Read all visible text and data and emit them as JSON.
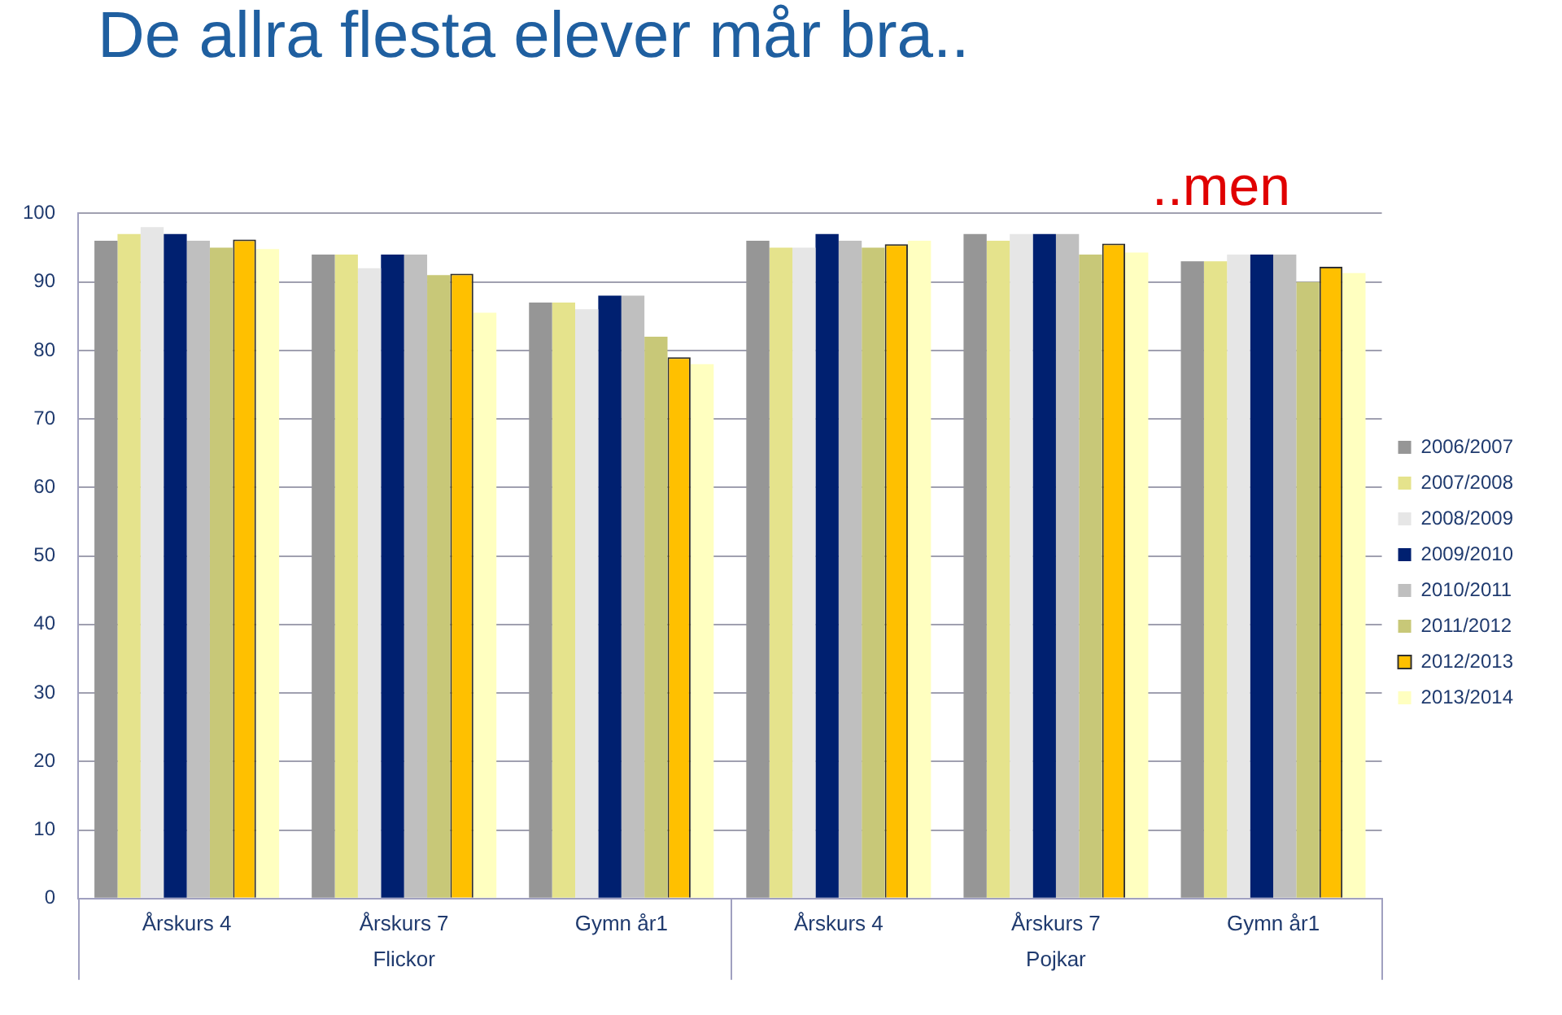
{
  "chart_data": {
    "type": "bar",
    "title": "De allra flesta elever mår bra..",
    "categories": [
      "Årskurs 4",
      "Årskurs 7",
      "Gymn år1",
      "Årskurs 4",
      "Årskurs 7",
      "Gymn år1"
    ],
    "series": [
      {
        "name": "2006/2007",
        "color": "#969696",
        "values": [
          96,
          94,
          87,
          96,
          97,
          93
        ]
      },
      {
        "name": "2007/2008",
        "color": "#e5e38c",
        "values": [
          97,
          94,
          87,
          95,
          96,
          93
        ]
      },
      {
        "name": "2008/2009",
        "color": "#e6e6e6",
        "values": [
          98,
          92,
          86,
          95,
          97,
          94
        ]
      },
      {
        "name": "2009/2010",
        "color": "#002070",
        "values": [
          97,
          94,
          88,
          97,
          97,
          94
        ]
      },
      {
        "name": "2010/2011",
        "color": "#bfbfbf",
        "values": [
          96,
          94,
          88,
          96,
          97,
          94
        ]
      },
      {
        "name": "2011/2012",
        "color": "#c8c878",
        "values": [
          95,
          91,
          82,
          95,
          94,
          90
        ]
      },
      {
        "name": "2012/2013",
        "color": "#ffc000",
        "values": [
          96.2,
          91.2,
          79,
          95.5,
          95.6,
          92.2
        ]
      },
      {
        "name": "2013/2014",
        "color": "#ffffc0",
        "values": [
          94.8,
          85.5,
          78,
          96,
          94.3,
          91.3
        ]
      }
    ],
    "ylim": [
      0,
      100
    ],
    "yticks": [
      0,
      10,
      20,
      30,
      40,
      50,
      60,
      70,
      80,
      90,
      100
    ],
    "grid": "y",
    "legend": "right",
    "annotations": [
      "..men",
      "Flickor",
      "Pojkar"
    ]
  }
}
